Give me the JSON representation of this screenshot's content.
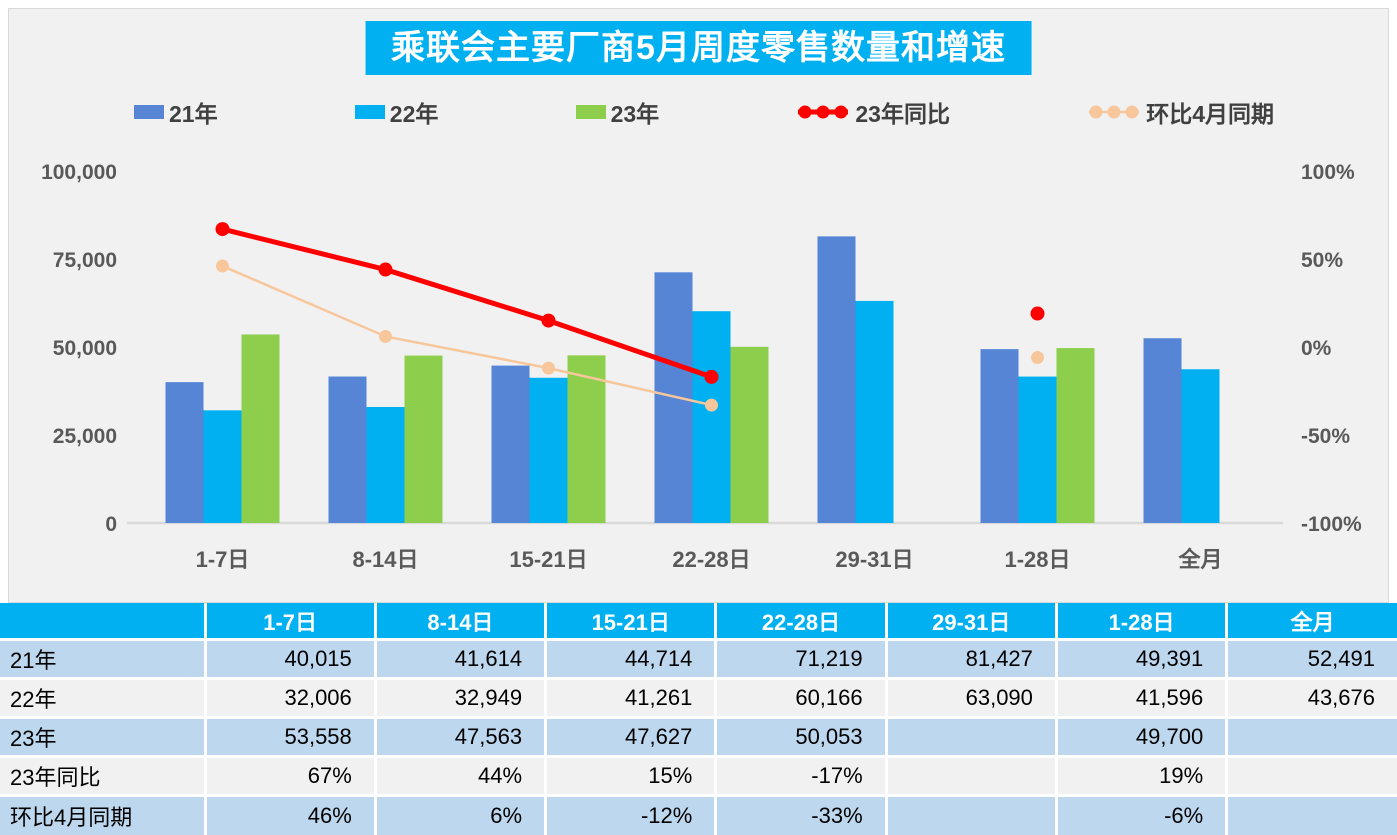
{
  "title": "乘联会主要厂商5月周度零售数量和增速",
  "colors": {
    "accent_cyan": "#00B0F0",
    "bar_21": "#5585D4",
    "bar_22": "#00B0F0",
    "bar_23": "#8DCE4D",
    "line_yoy": "#FF0000",
    "line_mom": "#F7C79B",
    "panel_bg": "#F1F1F1",
    "panel_border": "#D9D9D9",
    "axis_text": "#595959",
    "table_row_blue": "#BDD7EE",
    "table_row_gray": "#F1F1F1"
  },
  "legend": [
    {
      "label": "21年",
      "type": "bar",
      "color_key": "bar_21"
    },
    {
      "label": "22年",
      "type": "bar",
      "color_key": "bar_22"
    },
    {
      "label": "23年",
      "type": "bar",
      "color_key": "bar_23"
    },
    {
      "label": "23年同比",
      "type": "line",
      "color_key": "line_yoy"
    },
    {
      "label": "环比4月同期",
      "type": "line",
      "color_key": "line_mom"
    }
  ],
  "chart_data": {
    "type": "bar+line combo",
    "title": "乘联会主要厂商5月周度零售数量和增速",
    "categories": [
      "1-7日",
      "8-14日",
      "15-21日",
      "22-28日",
      "29-31日",
      "1-28日",
      "全月"
    ],
    "bar_series": [
      {
        "name": "21年",
        "values": [
          40015,
          41614,
          44714,
          71219,
          81427,
          49391,
          52491
        ]
      },
      {
        "name": "22年",
        "values": [
          32006,
          32949,
          41261,
          60166,
          63090,
          41596,
          43676
        ]
      },
      {
        "name": "23年",
        "values": [
          53558,
          47563,
          47627,
          50053,
          null,
          49700,
          null
        ]
      }
    ],
    "line_series": [
      {
        "name": "23年同比",
        "values_pct": [
          67,
          44,
          15,
          -17,
          null,
          19,
          null
        ]
      },
      {
        "name": "环比4月同期",
        "values_pct": [
          46,
          6,
          -12,
          -33,
          null,
          -6,
          null
        ]
      }
    ],
    "left_axis": {
      "min": 0,
      "max": 100000,
      "ticks": [
        "100,000",
        "75,000",
        "50,000",
        "25,000",
        "0"
      ]
    },
    "right_axis": {
      "min": -100,
      "max": 100,
      "ticks": [
        "100%",
        "50%",
        "0%",
        "-50%",
        "-100%"
      ]
    },
    "grid": "baseline only",
    "legend_position": "top"
  },
  "table": {
    "header": [
      "",
      "1-7日",
      "8-14日",
      "15-21日",
      "22-28日",
      "29-31日",
      "1-28日",
      "全月"
    ],
    "rows": [
      {
        "label": "21年",
        "cells": [
          "40,015",
          "41,614",
          "44,714",
          "71,219",
          "81,427",
          "49,391",
          "52,491"
        ]
      },
      {
        "label": "22年",
        "cells": [
          "32,006",
          "32,949",
          "41,261",
          "60,166",
          "63,090",
          "41,596",
          "43,676"
        ]
      },
      {
        "label": "23年",
        "cells": [
          "53,558",
          "47,563",
          "47,627",
          "50,053",
          "",
          "49,700",
          ""
        ]
      },
      {
        "label": "23年同比",
        "cells": [
          "67%",
          "44%",
          "15%",
          "-17%",
          "",
          "19%",
          ""
        ]
      },
      {
        "label": "环比4月同期",
        "cells": [
          "46%",
          "6%",
          "-12%",
          "-33%",
          "",
          "-6%",
          ""
        ]
      }
    ]
  }
}
